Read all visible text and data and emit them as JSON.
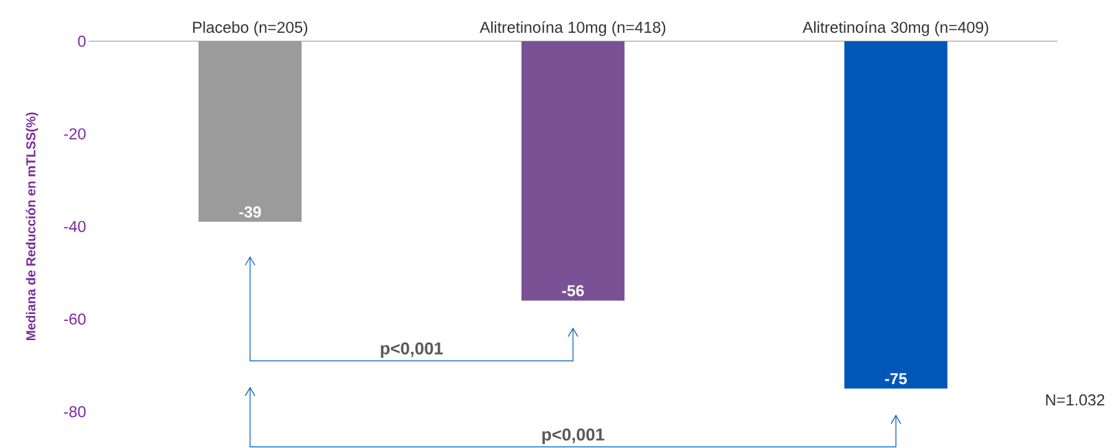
{
  "chart_data": {
    "type": "bar",
    "ylabel": "Mediana de Reducción  en mTLSS(%)",
    "categories": [
      "Placebo (n=205)",
      "Alitretinoína 10mg (n=418)",
      "Alitretinoína 30mg (n=409)"
    ],
    "values": [
      -39,
      -56,
      -75
    ],
    "colors": [
      "#9b9b9b",
      "#7b5195",
      "#0057b8"
    ],
    "ylim": [
      -80,
      0
    ],
    "yticks": [
      -80,
      -60,
      -40,
      -20,
      0
    ],
    "data_labels": true,
    "annotations": [
      "p<0,001",
      "p<0,001",
      "N=1.032"
    ]
  }
}
